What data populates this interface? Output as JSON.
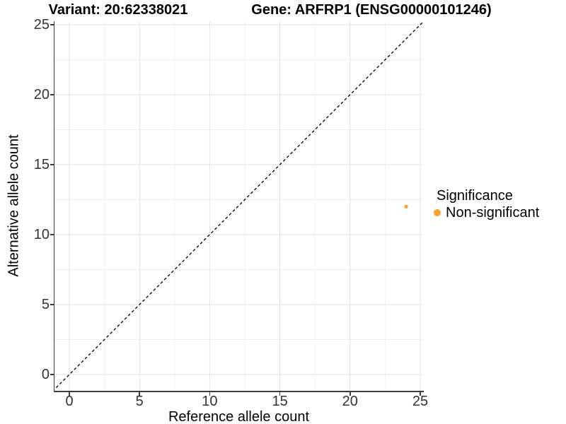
{
  "titles": {
    "left": "Variant: 20:62338021",
    "right": "Gene: ARFRP1 (ENSG00000101246)"
  },
  "axes": {
    "x_label": "Reference allele count",
    "y_label": "Alternative allele count"
  },
  "legend": {
    "title": "Significance",
    "items": [
      {
        "label": "Non-significant",
        "color": "#F9A12B"
      }
    ]
  },
  "colors": {
    "point": "#F9A12B",
    "axis": "#3c3c3c",
    "tick_text": "#333333",
    "grid_major": "#e2e2e2",
    "grid_minor": "#efefef",
    "reference_line": "#000000",
    "background": "#ffffff"
  },
  "chart_data": {
    "type": "scatter",
    "title": "Variant: 20:62338021   Gene: ARFRP1 (ENSG00000101246)",
    "xlabel": "Reference allele count",
    "ylabel": "Alternative allele count",
    "xlim": [
      -1.1,
      25.3
    ],
    "ylim": [
      -1.2,
      25.3
    ],
    "x_ticks": [
      0,
      5,
      10,
      15,
      20,
      25
    ],
    "y_ticks": [
      0,
      5,
      10,
      15,
      20,
      25
    ],
    "minor_tick_step": 2.5,
    "grid": "major+minor",
    "legend_position": "right",
    "series": [
      {
        "name": "Non-significant",
        "color": "#F9A12B",
        "points": [
          {
            "x": 24,
            "y": 12
          }
        ]
      }
    ],
    "reference_line": {
      "type": "identity y=x",
      "style": "dashed",
      "color": "#000000",
      "from": [
        -1.2,
        -1.2
      ],
      "to": [
        25.4,
        25.4
      ]
    }
  }
}
